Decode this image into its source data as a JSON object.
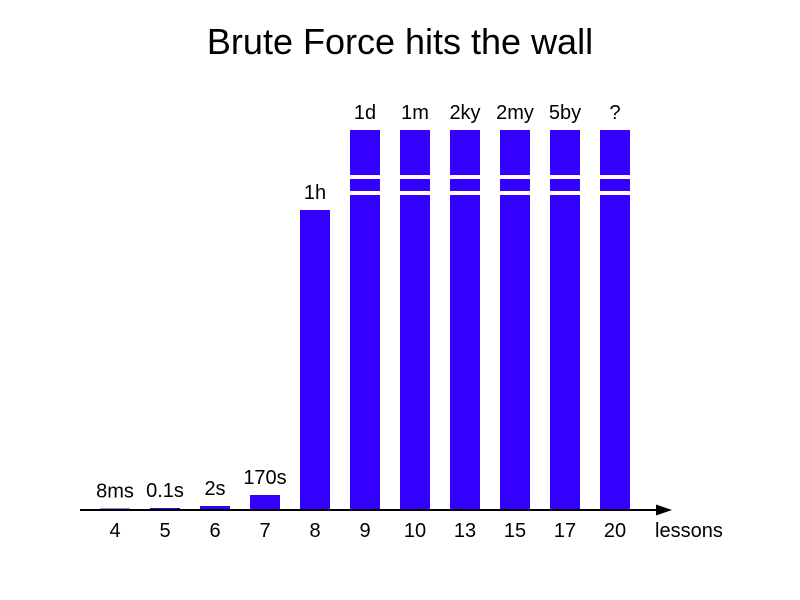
{
  "chart_data": {
    "type": "bar",
    "title": "Brute Force hits the wall",
    "xlabel": "lessons",
    "ylabel": "",
    "categories": [
      "4",
      "5",
      "6",
      "7",
      "8",
      "9",
      "10",
      "13",
      "15",
      "17",
      "20"
    ],
    "value_labels": [
      "8ms",
      "0.1s",
      "2s",
      "170s",
      "1h",
      "1d",
      "1m",
      "2ky",
      "2my",
      "5by",
      "?"
    ],
    "values": [
      0.5,
      2,
      4,
      15,
      300,
      380,
      380,
      380,
      380,
      380,
      380
    ],
    "broken": [
      false,
      false,
      false,
      false,
      false,
      true,
      true,
      true,
      true,
      true,
      true
    ],
    "color": "#3300ff",
    "axis": "x-arrow",
    "grid": false
  }
}
